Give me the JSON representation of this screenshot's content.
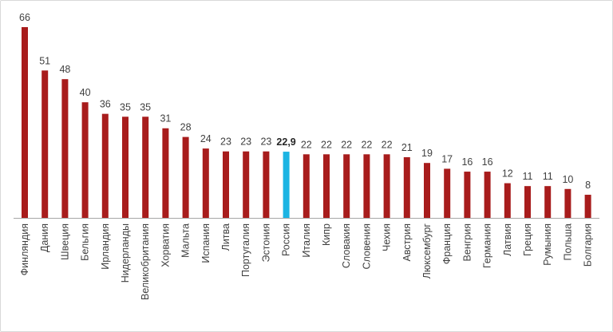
{
  "chart_data": {
    "type": "bar",
    "categories": [
      "Финляндия",
      "Дания",
      "Швеция",
      "Бельгия",
      "Ирландия",
      "Нидерланды",
      "Великобритания",
      "Хорватия",
      "Мальта",
      "Испания",
      "Литва",
      "Португалия",
      "Эстония",
      "Россия",
      "Италия",
      "Кипр",
      "Словакия",
      "Словения",
      "Чехия",
      "Австрия",
      "Люксембург",
      "Франция",
      "Венгрия",
      "Германия",
      "Латвия",
      "Греция",
      "Румыния",
      "Польша",
      "Болгария"
    ],
    "values": [
      66,
      51,
      48,
      40,
      36,
      35,
      35,
      31,
      28,
      24,
      23,
      23,
      23,
      22.9,
      22,
      22,
      22,
      22,
      22,
      21,
      19,
      17,
      16,
      16,
      12,
      11,
      11,
      10,
      8
    ],
    "value_labels": [
      "66",
      "51",
      "48",
      "40",
      "36",
      "35",
      "35",
      "31",
      "28",
      "24",
      "23",
      "23",
      "23",
      "22,9",
      "22",
      "22",
      "22",
      "22",
      "22",
      "21",
      "19",
      "17",
      "16",
      "16",
      "12",
      "11",
      "11",
      "10",
      "8"
    ],
    "highlight_category": "Россия",
    "colors": {
      "bar": "#a81c1c",
      "highlight": "#1cb4e3",
      "axis": "#a6a6a6"
    },
    "ylim": [
      0,
      66
    ],
    "grid": false,
    "legend": "none",
    "title": "",
    "xlabel": "",
    "ylabel": ""
  }
}
